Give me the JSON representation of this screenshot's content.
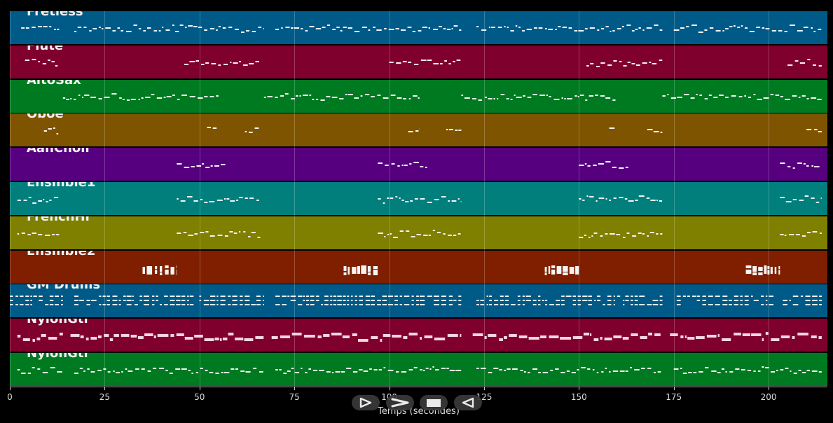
{
  "tracks": [
    {
      "name": "Fretless",
      "color": "#005a87"
    },
    {
      "name": "Flute",
      "color": "#7f002c"
    },
    {
      "name": "AltoSax",
      "color": "#007a20"
    },
    {
      "name": "Oboe",
      "color": "#7f5400"
    },
    {
      "name": "AahChoir",
      "color": "#57007f"
    },
    {
      "name": "Ensmble1",
      "color": "#007f7d"
    },
    {
      "name": "FrenchHr",
      "color": "#7f7f00"
    },
    {
      "name": "Ensmble2",
      "color": "#7f1f00"
    },
    {
      "name": "GM Drums",
      "color": "#005a87"
    },
    {
      "name": "NylonGtr",
      "color": "#7f002c"
    },
    {
      "name": "NylonGtr",
      "color": "#007a20"
    }
  ],
  "axis": {
    "title": "Temps (secondes)",
    "min": 0,
    "max": 215.5,
    "ticks": [
      "0",
      "25",
      "50",
      "75",
      "100",
      "125",
      "150",
      "175",
      "200"
    ]
  },
  "controls": [
    {
      "icon": "play-icon"
    },
    {
      "icon": "fast-forward-icon"
    },
    {
      "icon": "stop-icon"
    },
    {
      "icon": "rewind-icon"
    }
  ]
}
